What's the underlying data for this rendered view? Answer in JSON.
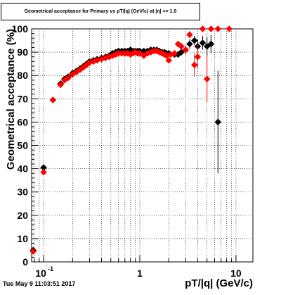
{
  "footer_timestamp": "Tue May  9 11:03:51 2017",
  "chart_data": {
    "type": "scatter",
    "title": "Geometrical acceptance for Primary vs pT/|q| (GeV/c) at |η| <= 1.0",
    "xlabel": "pT/|q| (GeV/c)",
    "ylabel": "Geometrical acceptance (%)",
    "xscale": "log",
    "xlim": [
      0.075,
      15
    ],
    "ylim": [
      0,
      100
    ],
    "grid": true,
    "x_tick_labels": [
      {
        "value": 0.1,
        "label": "10",
        "exp": "-1"
      },
      {
        "value": 1,
        "label": "1",
        "exp": ""
      },
      {
        "value": 10,
        "label": "10",
        "exp": ""
      }
    ],
    "y_ticks": [
      0,
      10,
      20,
      30,
      40,
      50,
      60,
      70,
      80,
      90,
      100
    ],
    "colors": {
      "black_series": "#000000",
      "red_series": "#ff0000"
    },
    "series": [
      {
        "color": "#000000",
        "marker": "diamond",
        "points": [
          [
            0.078,
            5,
            0,
            0
          ],
          [
            0.1,
            40.5,
            0,
            0
          ],
          [
            0.125,
            69.5,
            0,
            0
          ],
          [
            0.15,
            76.5,
            0,
            0
          ],
          [
            0.165,
            78.5,
            0,
            0
          ],
          [
            0.18,
            79.5,
            0,
            0
          ],
          [
            0.2,
            81,
            0,
            0
          ],
          [
            0.22,
            82,
            0,
            0
          ],
          [
            0.24,
            83,
            0,
            0
          ],
          [
            0.26,
            84,
            0,
            0
          ],
          [
            0.28,
            85,
            0,
            0
          ],
          [
            0.3,
            86,
            0,
            0
          ],
          [
            0.33,
            86.5,
            0,
            0
          ],
          [
            0.36,
            87,
            0,
            0
          ],
          [
            0.4,
            87.5,
            0,
            0
          ],
          [
            0.44,
            88,
            0,
            0
          ],
          [
            0.48,
            88.5,
            0,
            0
          ],
          [
            0.52,
            89.5,
            0,
            0
          ],
          [
            0.56,
            90,
            0,
            0
          ],
          [
            0.6,
            90.5,
            0,
            0
          ],
          [
            0.65,
            90.5,
            0,
            0
          ],
          [
            0.7,
            90.5,
            0,
            0
          ],
          [
            0.75,
            90.5,
            0,
            0
          ],
          [
            0.8,
            91,
            0,
            0
          ],
          [
            0.85,
            90.5,
            0,
            0
          ],
          [
            0.9,
            90.5,
            0,
            0
          ],
          [
            0.95,
            90.5,
            0,
            0
          ],
          [
            1.0,
            90.5,
            0,
            0
          ],
          [
            1.1,
            90.5,
            0,
            0
          ],
          [
            1.2,
            90.5,
            0,
            0
          ],
          [
            1.3,
            91,
            0,
            0
          ],
          [
            1.4,
            91,
            0,
            0
          ],
          [
            1.5,
            91,
            0,
            0
          ],
          [
            1.6,
            90.5,
            0,
            0
          ],
          [
            1.7,
            90,
            0,
            0
          ],
          [
            1.8,
            90,
            0,
            0
          ],
          [
            1.9,
            89.5,
            0,
            0
          ],
          [
            2.0,
            89.5,
            0,
            0
          ],
          [
            2.1,
            89,
            0,
            0
          ],
          [
            2.3,
            89,
            0,
            0
          ],
          [
            2.5,
            89,
            0,
            0
          ],
          [
            2.7,
            90,
            1,
            1
          ],
          [
            3.0,
            91,
            1.5,
            1.5
          ],
          [
            3.3,
            93.5,
            2,
            2
          ],
          [
            3.7,
            95,
            2,
            2
          ],
          [
            4.0,
            92.5,
            3,
            3
          ],
          [
            4.5,
            94,
            3,
            3
          ],
          [
            5.0,
            92.5,
            4,
            4
          ],
          [
            5.5,
            93.5,
            4,
            4
          ],
          [
            6.5,
            60,
            22,
            22
          ]
        ]
      },
      {
        "color": "#ff0000",
        "marker": "diamond",
        "points": [
          [
            0.078,
            4.5,
            0,
            0
          ],
          [
            0.1,
            38.5,
            0,
            0
          ],
          [
            0.125,
            69.5,
            0,
            0
          ],
          [
            0.15,
            76,
            0,
            0
          ],
          [
            0.165,
            78,
            0,
            0
          ],
          [
            0.18,
            79,
            0,
            0
          ],
          [
            0.2,
            80.5,
            0,
            0
          ],
          [
            0.22,
            81.5,
            0,
            0
          ],
          [
            0.24,
            82.5,
            0,
            0
          ],
          [
            0.26,
            83.5,
            0,
            0
          ],
          [
            0.28,
            84.5,
            0,
            0
          ],
          [
            0.3,
            85.5,
            0,
            0
          ],
          [
            0.33,
            86,
            0,
            0
          ],
          [
            0.36,
            86.5,
            0,
            0
          ],
          [
            0.4,
            87,
            0,
            0
          ],
          [
            0.44,
            87.5,
            0,
            0
          ],
          [
            0.48,
            88,
            0,
            0
          ],
          [
            0.52,
            88.5,
            0,
            0
          ],
          [
            0.56,
            89,
            0,
            0
          ],
          [
            0.6,
            89.5,
            0,
            0
          ],
          [
            0.65,
            89.5,
            0,
            0
          ],
          [
            0.7,
            89.5,
            0,
            0
          ],
          [
            0.75,
            89.5,
            0,
            0
          ],
          [
            0.8,
            89,
            0,
            0
          ],
          [
            0.85,
            89.5,
            0,
            0
          ],
          [
            0.9,
            90,
            0,
            0
          ],
          [
            0.95,
            89.5,
            0,
            0
          ],
          [
            1.0,
            89.5,
            0,
            0
          ],
          [
            1.1,
            88.5,
            0,
            0
          ],
          [
            1.2,
            89.5,
            0,
            0
          ],
          [
            1.3,
            90,
            0,
            0
          ],
          [
            1.4,
            90.5,
            0,
            0
          ],
          [
            1.5,
            90.5,
            0,
            0
          ],
          [
            1.6,
            90,
            0,
            0
          ],
          [
            1.7,
            89.5,
            0,
            0
          ],
          [
            1.8,
            89,
            0,
            0
          ],
          [
            1.9,
            88.5,
            0,
            0
          ],
          [
            2.0,
            86.5,
            0,
            0
          ],
          [
            2.1,
            89,
            0,
            0
          ],
          [
            2.3,
            89.5,
            0,
            0
          ],
          [
            2.5,
            93.5,
            1,
            1
          ],
          [
            2.7,
            92.5,
            1.5,
            1.5
          ],
          [
            3.0,
            91,
            2,
            2
          ],
          [
            3.3,
            97.5,
            1.5,
            1.5
          ],
          [
            3.7,
            84.5,
            5,
            5
          ],
          [
            4.0,
            88,
            5,
            5
          ],
          [
            4.5,
            100,
            0,
            0
          ],
          [
            5.0,
            78.5,
            10,
            10
          ],
          [
            5.5,
            100,
            0,
            0
          ],
          [
            6.5,
            100,
            0,
            0
          ],
          [
            8.5,
            100,
            0,
            0
          ]
        ]
      }
    ]
  }
}
